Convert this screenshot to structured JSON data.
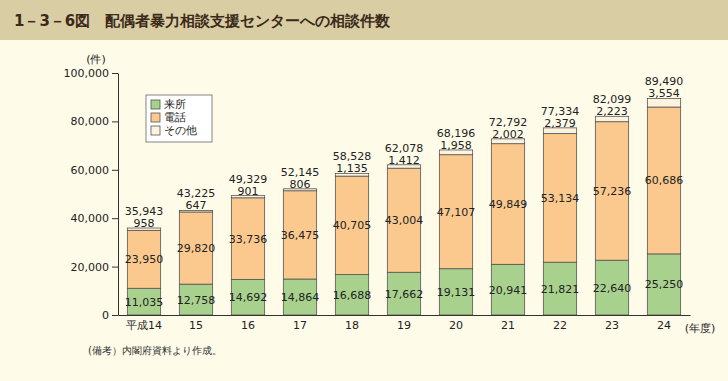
{
  "chart_data": {
    "type": "bar",
    "title": "1－3－6図　配偶者暴力相談支援センターへの相談件数",
    "y_label": "(件)",
    "x_label": "(年度)",
    "note": "(備考）内閣府資料より作成。",
    "categories": [
      "平成14",
      "15",
      "16",
      "17",
      "18",
      "19",
      "20",
      "21",
      "22",
      "23",
      "24"
    ],
    "series": [
      {
        "name": "来所",
        "color": "#a9d18e",
        "values": [
          11035,
          12758,
          14692,
          14864,
          16688,
          17662,
          19131,
          20941,
          21821,
          22640,
          25250
        ],
        "value_labels": [
          "11,035",
          "12,758",
          "14,692",
          "14,864",
          "16,688",
          "17,662",
          "19,131",
          "20,941",
          "21,821",
          "22,640",
          "25,250"
        ]
      },
      {
        "name": "電話",
        "color": "#fbc98e",
        "values": [
          23950,
          29820,
          33736,
          36475,
          40705,
          43004,
          47107,
          49849,
          53134,
          57236,
          60686
        ],
        "value_labels": [
          "23,950",
          "29,820",
          "33,736",
          "36,475",
          "40,705",
          "43,004",
          "47,107",
          "49,849",
          "53,134",
          "57,236",
          "60,686"
        ]
      },
      {
        "name": "その他",
        "color": "#fdf3df",
        "values": [
          958,
          647,
          901,
          806,
          1135,
          1412,
          1958,
          2002,
          2379,
          2223,
          3554
        ],
        "value_labels": [
          "958",
          "647",
          "901",
          "806",
          "1,135",
          "1,412",
          "1,958",
          "2,002",
          "2,379",
          "2,223",
          "3,554"
        ]
      }
    ],
    "totals": [
      35943,
      43225,
      49329,
      52145,
      58528,
      62078,
      68196,
      72792,
      77334,
      82099,
      89490
    ],
    "total_labels": [
      "35,943",
      "43,225",
      "49,329",
      "52,145",
      "58,528",
      "62,078",
      "68,196",
      "72,792",
      "77,334",
      "82,099",
      "89,490"
    ],
    "ylim": [
      0,
      100000
    ],
    "yticks": [
      0,
      {
        "value": 20000,
        "label": "20,000"
      },
      {
        "value": 40000,
        "label": "40,000"
      },
      {
        "value": 60000,
        "label": "60,000"
      },
      {
        "value": 80000,
        "label": "80,000"
      },
      {
        "value": 100000,
        "label": "100,000"
      }
    ],
    "stacked": true,
    "data_labels": true,
    "grid": false,
    "legend": "upper left"
  }
}
